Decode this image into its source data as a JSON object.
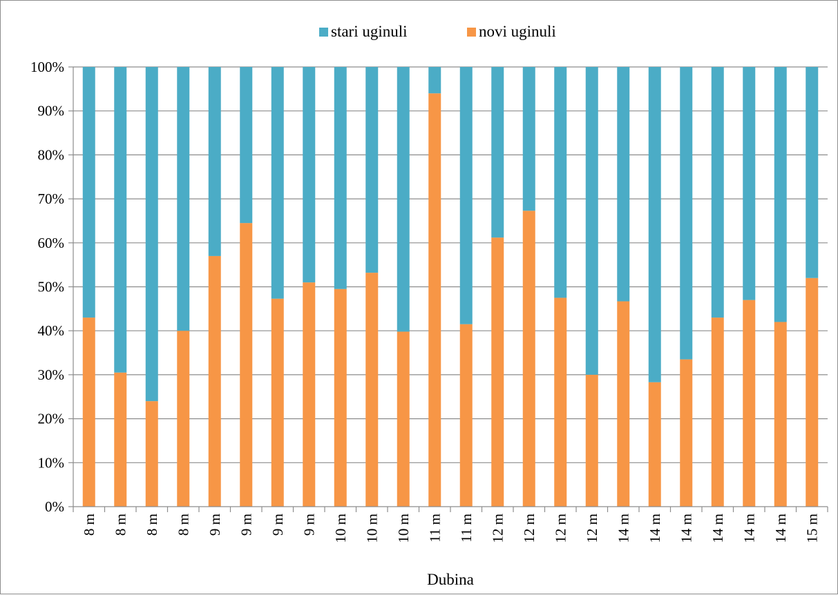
{
  "chart_data": {
    "type": "bar",
    "stacked": true,
    "normalized": true,
    "title": "",
    "xlabel": "Dubina",
    "ylabel": "",
    "ylim": [
      0,
      100
    ],
    "yticks": [
      "0%",
      "10%",
      "20%",
      "30%",
      "40%",
      "50%",
      "60%",
      "70%",
      "80%",
      "90%",
      "100%"
    ],
    "grid": true,
    "legend_position": "top",
    "categories": [
      "8 m",
      "8 m",
      "8 m",
      "8 m",
      "9 m",
      "9 m",
      "9 m",
      "9 m",
      "10 m",
      "10 m",
      "10 m",
      "11 m",
      "11 m",
      "12 m",
      "12 m",
      "12 m",
      "12 m",
      "14 m",
      "14 m",
      "14 m",
      "14 m",
      "14 m",
      "14 m",
      "15 m"
    ],
    "series": [
      {
        "name": "novi uginuli",
        "color": "#F79646",
        "values": [
          43,
          30.5,
          24,
          40,
          57,
          64.5,
          47.3,
          51,
          49.5,
          53.2,
          39.8,
          94,
          41.5,
          61.2,
          67.3,
          47.5,
          30,
          46.7,
          28.3,
          33.5,
          43,
          47,
          42,
          52
        ]
      },
      {
        "name": "stari uginuli",
        "color": "#4BACC6",
        "values": [
          57,
          69.5,
          76,
          60,
          43,
          35.5,
          52.7,
          49,
          50.5,
          46.8,
          60.2,
          6,
          58.5,
          38.8,
          32.7,
          52.5,
          70,
          53.3,
          71.7,
          66.5,
          57,
          53,
          58,
          48
        ]
      }
    ],
    "legend": [
      {
        "name": "stari uginuli",
        "color": "#4BACC6"
      },
      {
        "name": "novi uginuli",
        "color": "#F79646"
      }
    ]
  }
}
